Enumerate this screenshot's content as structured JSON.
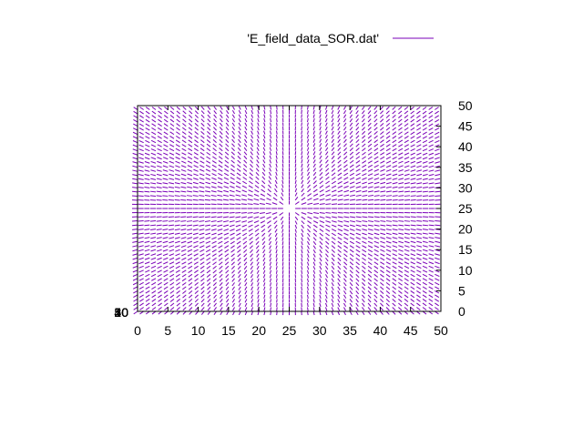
{
  "chart_data": {
    "type": "vector-field",
    "legend": {
      "entries": [
        {
          "label": "'E_field_data_SOR.dat'",
          "color": "#7a00b8"
        }
      ],
      "placement": "top-right"
    },
    "x": {
      "range": [
        0,
        50
      ],
      "tick_labels": [
        "0",
        "5",
        "10",
        "15",
        "20",
        "25",
        "30",
        "35",
        "40",
        "45",
        "50"
      ]
    },
    "y_right": {
      "range": [
        0,
        50
      ],
      "tick_labels": [
        "0",
        "5",
        "10",
        "15",
        "20",
        "25",
        "30",
        "35",
        "40",
        "45",
        "50"
      ]
    },
    "y_left_overlapping_labels": [
      "0",
      "10",
      "20",
      "30",
      "40",
      "50"
    ],
    "grid": false,
    "field": {
      "domain_x": [
        0,
        49
      ],
      "domain_y": [
        0,
        49
      ],
      "step": 1,
      "source": {
        "x": 25,
        "y": 25
      },
      "vector_length": 0.9,
      "color": "#7a00b8"
    }
  }
}
